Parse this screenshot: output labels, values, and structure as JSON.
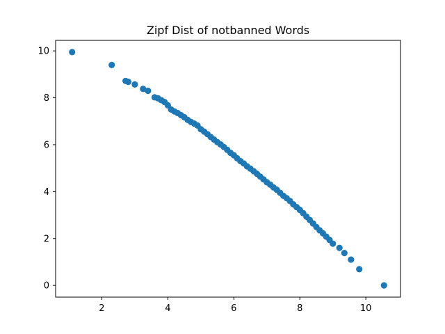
{
  "chart_data": {
    "type": "scatter",
    "title": "Zipf Dist of notbanned Words",
    "xlabel": "",
    "ylabel": "",
    "xlim": [
      0.6,
      11.05
    ],
    "ylim": [
      -0.5,
      10.45
    ],
    "xticks": [
      2,
      4,
      6,
      8,
      10
    ],
    "yticks": [
      0,
      2,
      4,
      6,
      8,
      10
    ],
    "grid": false,
    "legend": "none",
    "marker_color": "#1f77b4",
    "series": [
      {
        "points": [
          [
            1.1,
            9.95
          ],
          [
            2.3,
            9.4
          ],
          [
            2.72,
            8.72
          ],
          [
            2.8,
            8.68
          ],
          [
            3.0,
            8.57
          ],
          [
            3.25,
            8.38
          ],
          [
            3.4,
            8.3
          ],
          [
            3.6,
            8.02
          ],
          [
            3.7,
            7.98
          ],
          [
            3.8,
            7.9
          ],
          [
            3.9,
            7.82
          ],
          [
            4.0,
            7.68
          ],
          [
            4.1,
            7.5
          ],
          [
            4.2,
            7.42
          ],
          [
            4.3,
            7.35
          ],
          [
            4.4,
            7.26
          ],
          [
            4.5,
            7.17
          ],
          [
            4.6,
            7.06
          ],
          [
            4.7,
            6.97
          ],
          [
            4.8,
            6.9
          ],
          [
            4.9,
            6.82
          ],
          [
            5.0,
            6.66
          ],
          [
            5.1,
            6.56
          ],
          [
            5.2,
            6.45
          ],
          [
            5.3,
            6.33
          ],
          [
            5.4,
            6.22
          ],
          [
            5.5,
            6.11
          ],
          [
            5.6,
            6.01
          ],
          [
            5.7,
            5.9
          ],
          [
            5.8,
            5.78
          ],
          [
            5.9,
            5.65
          ],
          [
            6.0,
            5.55
          ],
          [
            6.1,
            5.42
          ],
          [
            6.2,
            5.3
          ],
          [
            6.3,
            5.2
          ],
          [
            6.4,
            5.08
          ],
          [
            6.5,
            4.98
          ],
          [
            6.6,
            4.87
          ],
          [
            6.7,
            4.76
          ],
          [
            6.8,
            4.64
          ],
          [
            6.9,
            4.52
          ],
          [
            7.0,
            4.4
          ],
          [
            7.1,
            4.3
          ],
          [
            7.2,
            4.18
          ],
          [
            7.3,
            4.08
          ],
          [
            7.4,
            3.95
          ],
          [
            7.5,
            3.82
          ],
          [
            7.6,
            3.72
          ],
          [
            7.7,
            3.6
          ],
          [
            7.8,
            3.46
          ],
          [
            7.9,
            3.34
          ],
          [
            8.0,
            3.22
          ],
          [
            8.1,
            3.08
          ],
          [
            8.2,
            2.93
          ],
          [
            8.3,
            2.79
          ],
          [
            8.4,
            2.64
          ],
          [
            8.5,
            2.49
          ],
          [
            8.6,
            2.35
          ],
          [
            8.7,
            2.22
          ],
          [
            8.8,
            2.08
          ],
          [
            8.9,
            1.94
          ],
          [
            9.0,
            1.78
          ],
          [
            9.2,
            1.6
          ],
          [
            9.35,
            1.38
          ],
          [
            9.55,
            1.1
          ],
          [
            9.8,
            0.69
          ],
          [
            10.55,
            0.0
          ]
        ]
      }
    ]
  }
}
